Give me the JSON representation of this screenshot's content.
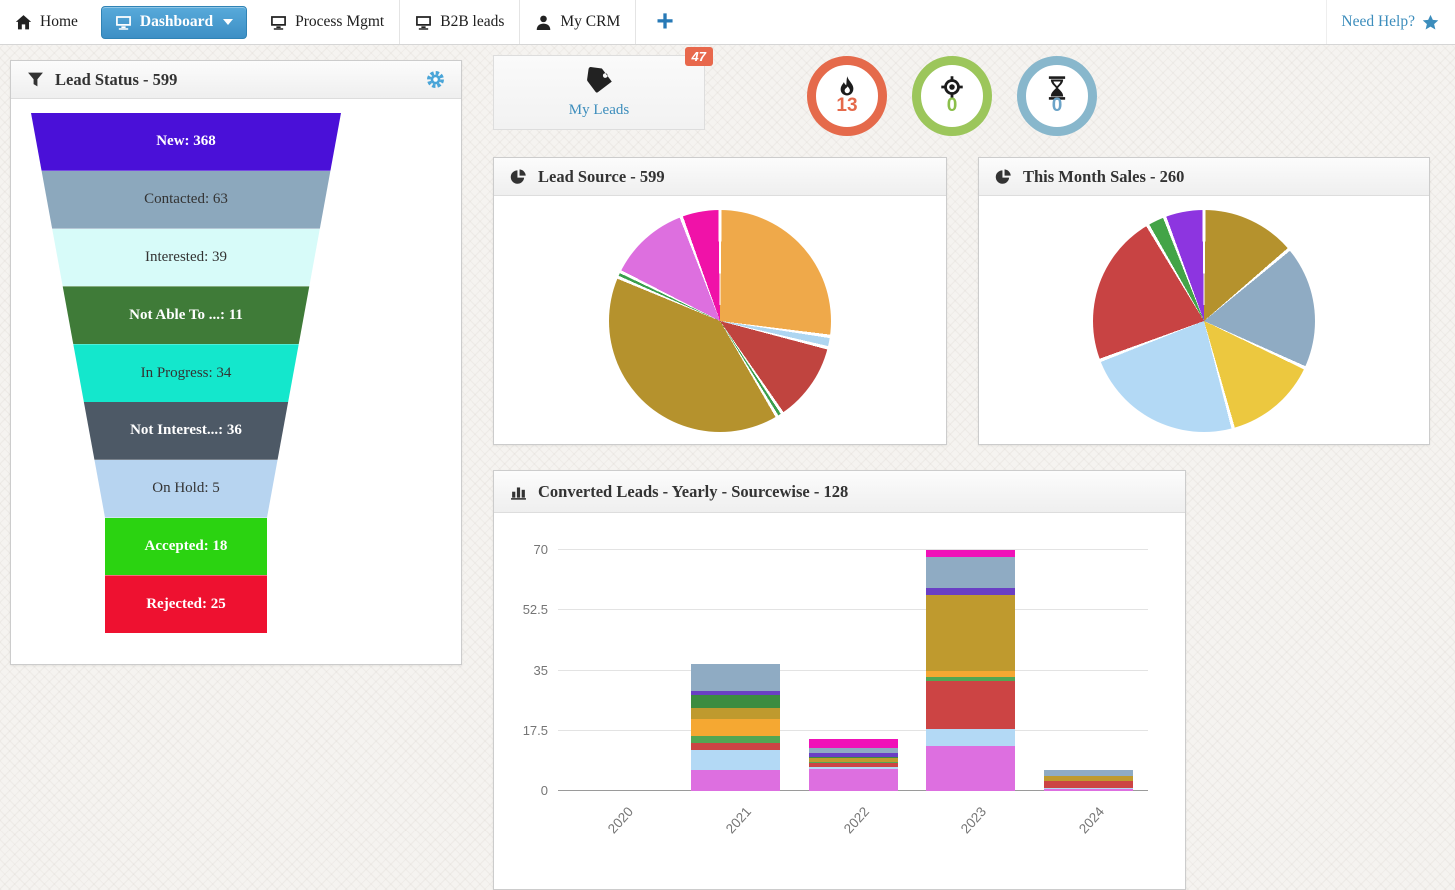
{
  "navbar": {
    "items": [
      {
        "label": "Home",
        "icon": "home-icon",
        "active": false,
        "bordered": false
      },
      {
        "label": "Dashboard",
        "icon": "monitor-icon",
        "active": true,
        "caret": true
      },
      {
        "label": "Process Mgmt",
        "icon": "monitor-icon",
        "active": false,
        "bordered": true
      },
      {
        "label": "B2B leads",
        "icon": "monitor-icon",
        "active": false,
        "bordered": true
      },
      {
        "label": "My CRM",
        "icon": "user-icon",
        "active": false,
        "bordered": false
      }
    ],
    "add_button": "+",
    "help": {
      "label": "Need Help?",
      "icon": "star-icon",
      "color": "#3c8dbc"
    }
  },
  "lead_status": {
    "icon": "funnel-icon",
    "title": "Lead Status - 599",
    "settings_icon": "gear-icon",
    "settings_color": "#4aa5d8",
    "rows": [
      {
        "label": "New: 368",
        "color": "#4a10d8",
        "text_color": "#ffffff"
      },
      {
        "label": "Contacted: 63",
        "color": "#8ca8bd",
        "text_color": "#333333"
      },
      {
        "label": "Interested: 39",
        "color": "#d7fbf9",
        "text_color": "#333333"
      },
      {
        "label": "Not Able To ...: 11",
        "color": "#3f7b38",
        "text_color": "#ffffff"
      },
      {
        "label": "In Progress: 34",
        "color": "#14e7cc",
        "text_color": "#333333"
      },
      {
        "label": "Not Interest...: 36",
        "color": "#4d5966",
        "text_color": "#ffffff"
      },
      {
        "label": "On Hold: 5",
        "color": "#b7d4f0",
        "text_color": "#333333"
      },
      {
        "label": "Accepted: 18",
        "color": "#2bd311",
        "text_color": "#ffffff"
      },
      {
        "label": "Rejected: 25",
        "color": "#ee1130",
        "text_color": "#ffffff"
      }
    ]
  },
  "my_leads": {
    "label": "My Leads",
    "badge": "47",
    "icon": "tag-icon"
  },
  "stat_circles": [
    {
      "icon": "flame-icon",
      "value": "13",
      "ring_color": "#e56a4b",
      "value_color": "#e56a4b"
    },
    {
      "icon": "target-icon",
      "value": "0",
      "ring_color": "#9cc65b",
      "value_color": "#8bbf4a"
    },
    {
      "icon": "hourglass-icon",
      "value": "0",
      "ring_color": "#88b7cc",
      "value_color": "#6aa3c8"
    }
  ],
  "chart_data": [
    {
      "type": "pie",
      "title": "Lead Source - 599",
      "icon": "pie-icon",
      "total": 599,
      "legend": "none",
      "start_angle_deg": 0,
      "direction": "clockwise",
      "slices": [
        {
          "name": "orange",
          "value": 163,
          "color": "#efa94a"
        },
        {
          "name": "light-blue",
          "value": 10,
          "color": "#aed6f1"
        },
        {
          "name": "red",
          "value": 70,
          "color": "#c0443f"
        },
        {
          "name": "green",
          "value": 5,
          "color": "#3a9e4c"
        },
        {
          "name": "dark-gold",
          "value": 240,
          "color": "#b5922d"
        },
        {
          "name": "green-2",
          "value": 5,
          "color": "#3a9e4c"
        },
        {
          "name": "orchid",
          "value": 72,
          "color": "#dd6fdf"
        },
        {
          "name": "magenta",
          "value": 34,
          "color": "#f012a8"
        }
      ]
    },
    {
      "type": "pie",
      "title": "This Month Sales - 260",
      "icon": "pie-icon",
      "total": 260,
      "legend": "none",
      "start_angle_deg": 0,
      "direction": "clockwise",
      "slices": [
        {
          "name": "dark-gold",
          "value": 36,
          "color": "#b5922d"
        },
        {
          "name": "gray-blue",
          "value": 47,
          "color": "#8fabc3"
        },
        {
          "name": "yellow",
          "value": 36,
          "color": "#ecc83f"
        },
        {
          "name": "light-blue",
          "value": 61,
          "color": "#b3d9f5"
        },
        {
          "name": "red",
          "value": 58,
          "color": "#c84343"
        },
        {
          "name": "green",
          "value": 7,
          "color": "#43a447"
        },
        {
          "name": "purple",
          "value": 15,
          "color": "#8d35e0"
        }
      ]
    },
    {
      "type": "bar",
      "stacked": true,
      "title": "Converted Leads - Yearly - Sourcewise - 128",
      "icon": "bar-icon",
      "total": 128,
      "legend": "none",
      "grid": "horizontal",
      "categories": [
        "2020",
        "2021",
        "2022",
        "2023",
        "2024"
      ],
      "ylim": [
        0,
        70
      ],
      "yticks": [
        0,
        17.5,
        35,
        52.5,
        70
      ],
      "series": [
        {
          "name": "violet",
          "color": "#dd6fe0",
          "values": [
            0,
            6,
            6.5,
            13,
            0.5
          ]
        },
        {
          "name": "light-blue",
          "color": "#b3d9f5",
          "values": [
            0,
            6,
            0.5,
            5,
            0.3
          ]
        },
        {
          "name": "red",
          "color": "#cc4444",
          "values": [
            0,
            2,
            1,
            14,
            2.2
          ]
        },
        {
          "name": "green",
          "color": "#53a653",
          "values": [
            0,
            2,
            0.5,
            1,
            0
          ]
        },
        {
          "name": "orange",
          "color": "#f5a832",
          "values": [
            0,
            5,
            0,
            2,
            0
          ]
        },
        {
          "name": "dark-gold",
          "color": "#bf9a2e",
          "values": [
            0,
            3,
            1,
            22,
            1.5
          ]
        },
        {
          "name": "dark-green",
          "color": "#3c8c40",
          "values": [
            0,
            4,
            0.5,
            0,
            0
          ]
        },
        {
          "name": "purple",
          "color": "#6a3fc4",
          "values": [
            0,
            1,
            1,
            2,
            0
          ]
        },
        {
          "name": "gray-blue",
          "color": "#8fabc3",
          "values": [
            0,
            8,
            1.5,
            9,
            1.5
          ]
        },
        {
          "name": "magenta",
          "color": "#f012b8",
          "values": [
            0,
            0,
            2.5,
            2,
            0
          ]
        }
      ]
    }
  ]
}
